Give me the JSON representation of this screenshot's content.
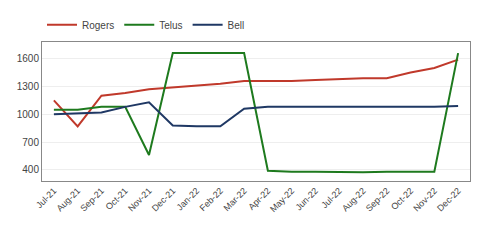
{
  "chart_data": {
    "type": "line",
    "categories": [
      "Jul-21",
      "Aug-21",
      "Sep-21",
      "Oct-21",
      "Nov-21",
      "Dec-21",
      "Jan-22",
      "Feb-22",
      "Mar-22",
      "Apr-22",
      "May-22",
      "Jun-22",
      "Jul-22",
      "Aug-22",
      "Sep-22",
      "Oct-22",
      "Nov-22",
      "Dec-22"
    ],
    "series": [
      {
        "name": "Rogers",
        "color": "#c0392b",
        "values": [
          1150,
          870,
          1200,
          1230,
          1270,
          1290,
          1310,
          1330,
          1360,
          1360,
          1360,
          1370,
          1380,
          1390,
          1390,
          1450,
          1500,
          1590
        ]
      },
      {
        "name": "Telus",
        "color": "#1e7a1e",
        "values": [
          1050,
          1050,
          1080,
          1080,
          560,
          1660,
          1660,
          1660,
          1660,
          390,
          380,
          380,
          375,
          375,
          380,
          380,
          380,
          1660
        ]
      },
      {
        "name": "Bell",
        "color": "#1f3864",
        "values": [
          1000,
          1010,
          1020,
          1080,
          1130,
          880,
          870,
          870,
          1060,
          1080,
          1080,
          1080,
          1080,
          1080,
          1080,
          1080,
          1080,
          1090
        ]
      }
    ],
    "ylim": [
      280,
      1780
    ],
    "yticks": [
      400,
      700,
      1000,
      1300,
      1600
    ],
    "grid": true,
    "legend": "top"
  }
}
